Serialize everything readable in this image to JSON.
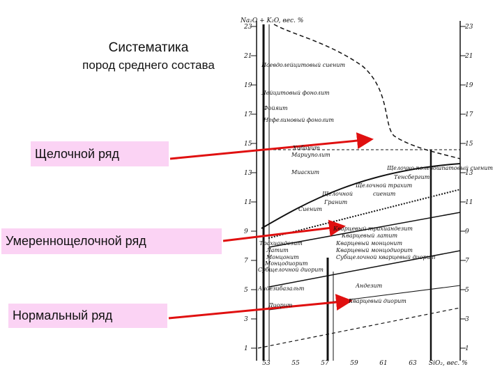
{
  "header": {
    "title": "Систематика",
    "subtitle": "пород среднего состава"
  },
  "series_labels": [
    "Щелочной ряд",
    "Умереннощелочной ряд",
    "Нормальный ряд"
  ],
  "diagram": {
    "y_axis_label": "Na₂O + K₂O, вес. %",
    "x_axis_label": "SiO₂, вес. %",
    "yticks": [
      23,
      21,
      19,
      17,
      15,
      13,
      11,
      9,
      7,
      5,
      3,
      1
    ],
    "xticks": [
      53,
      55,
      57,
      59,
      61,
      63
    ],
    "rocks": [
      "Псевдолейцитовый сиенит",
      "Лейцитовый фонолит",
      "Фойяит",
      "Нефелиновый фонолит",
      "Хибинит",
      "Мариуполит",
      "Миаскит",
      "Щелочно-полевошпатовый сиенит",
      "Тенсбергит",
      "Щелочной трахит",
      "Щелочной",
      "сиенит",
      "Гранит",
      "Сиенит",
      "Трахиандезит",
      "Латит",
      "Монцонит",
      "Монцодиорит",
      "Субщелочной диорит",
      "Кварцевый трахиандезит",
      "Кварцевый латит",
      "Кварцевый монцонит",
      "Кварцевый монцодиорит",
      "Субщелочной кварцевый диорит",
      "Андезибазальт",
      "Андезит",
      "Диорит",
      "Кварцевый диорит"
    ]
  }
}
